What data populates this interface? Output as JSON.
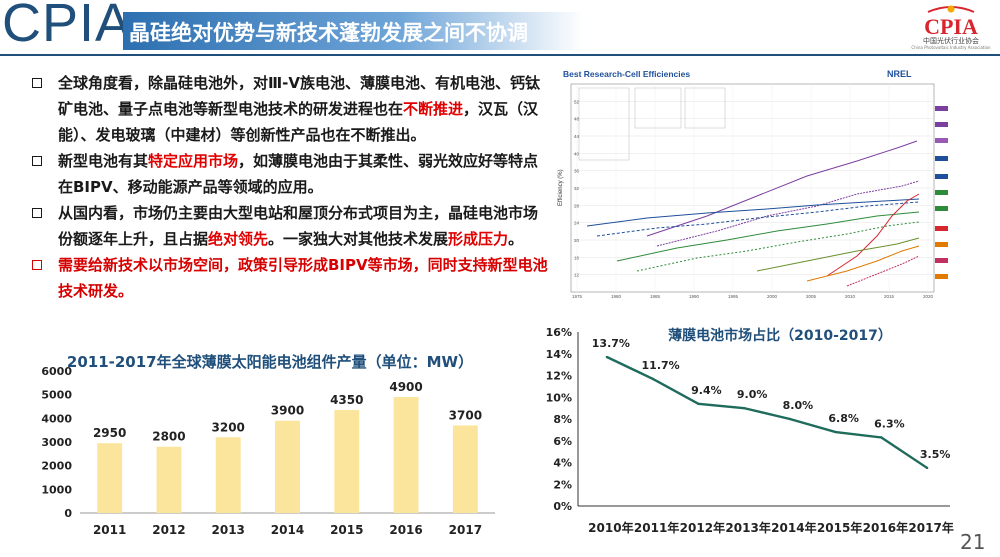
{
  "header": {
    "logo_text": "CPIA",
    "title": "晶硅绝对优势与新技术蓬勃发展之间不协调",
    "org_logo_text": "CPIA",
    "org_name": "中国光伏行业协会",
    "org_name_en": "China Photovoltaic Industry Association"
  },
  "bullets": [
    {
      "segments": [
        {
          "text": "全球角度看，除晶硅电池外，对Ⅲ-Ⅴ族电池、薄膜电池、有机电池、钙钛矿电池、量子点电池等新型电池技术的研发进程也在",
          "hl": false
        },
        {
          "text": "不断推进",
          "hl": true
        },
        {
          "text": "，汉瓦（汉能）、发电玻璃（中建材）等创新性产品也在不断推出。",
          "hl": false
        }
      ]
    },
    {
      "segments": [
        {
          "text": "新型电池有其",
          "hl": false
        },
        {
          "text": "特定应用市场",
          "hl": true
        },
        {
          "text": "，如薄膜电池由于其柔性、弱光效应好等特点在BIPV、移动能源产品等领域的应用。",
          "hl": false
        }
      ]
    },
    {
      "segments": [
        {
          "text": "从国内看，市场仍主要由大型电站和屋顶分布式项目为主，晶硅电池市场份额逐年上升，且占据",
          "hl": false
        },
        {
          "text": "绝对领先",
          "hl": true
        },
        {
          "text": "。一家独大对其他技术发展",
          "hl": false
        },
        {
          "text": "形成压力",
          "hl": true
        },
        {
          "text": "。",
          "hl": false
        }
      ]
    },
    {
      "red": true,
      "segments": [
        {
          "text": "需要给新技术以市场空间，政策引导形成BIPV等市场，同时支持新型电池技术研发。",
          "hl": false
        }
      ]
    }
  ],
  "nrel_chart": {
    "title": "Best Research-Cell Efficiencies",
    "brand": "NREL",
    "ylabel": "Efficiency (%)",
    "x_ticks": [
      "1975",
      "1980",
      "1985",
      "1990",
      "1995",
      "2000",
      "2005",
      "2010",
      "2015",
      "2020"
    ],
    "y_ticks": [
      "12",
      "16",
      "20",
      "24",
      "28",
      "32",
      "36",
      "40",
      "44",
      "48",
      "52"
    ]
  },
  "chart_data": [
    {
      "type": "bar",
      "title": "2011-2017年全球薄膜太阳能电池组件产量（单位：MW）",
      "categories": [
        "2011",
        "2012",
        "2013",
        "2014",
        "2015",
        "2016",
        "2017"
      ],
      "values": [
        2950,
        2800,
        3200,
        3900,
        4350,
        4900,
        3700
      ],
      "value_labels": [
        "2950",
        "2800",
        "3200",
        "3900",
        "4350",
        "4900",
        "3700"
      ],
      "ylim": [
        0,
        6000
      ],
      "y_ticks": [
        "0",
        "1000",
        "2000",
        "3000",
        "4000",
        "5000",
        "6000"
      ],
      "color": "#fbe59c",
      "grid": false,
      "legend": "none"
    },
    {
      "type": "line",
      "title": "薄膜电池市场占比（2010-2017）",
      "categories": [
        "2010年",
        "2011年",
        "2012年",
        "2013年",
        "2014年",
        "2015年",
        "2016年",
        "2017年"
      ],
      "values": [
        13.7,
        11.7,
        9.4,
        9.0,
        8.0,
        6.8,
        6.3,
        3.5
      ],
      "value_labels": [
        "13.7%",
        "11.7%",
        "9.4%",
        "9.0%",
        "8.0%",
        "6.8%",
        "6.3%",
        "3.5%"
      ],
      "ylim": [
        0,
        16
      ],
      "y_ticks": [
        "0%",
        "2%",
        "4%",
        "6%",
        "8%",
        "10%",
        "12%",
        "14%",
        "16%"
      ],
      "color": "#1f6b5c",
      "grid": false,
      "legend": "none"
    }
  ],
  "page_number": "21"
}
